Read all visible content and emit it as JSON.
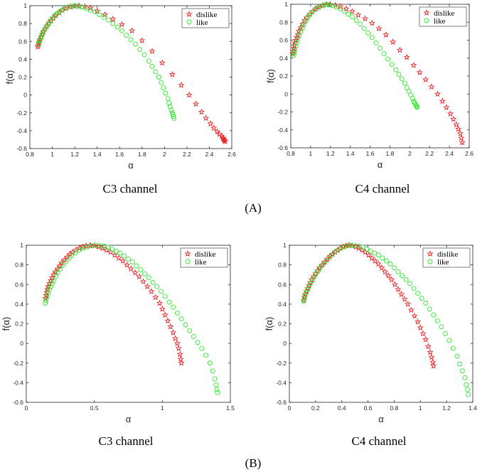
{
  "panel_labels": {
    "A": "(A)",
    "B": "(B)"
  },
  "captions": {
    "A_left": "C3 channel",
    "A_right": "C4 channel",
    "B_left": "C3 channel",
    "B_right": "C4 channel"
  },
  "colors": {
    "dislike": "#e8282b",
    "like": "#2ee82e",
    "axis": "#262626"
  },
  "legend_placement": "top-right",
  "chart_data": [
    {
      "id": "A-C3",
      "type": "scatter",
      "title": "",
      "xlabel": "α",
      "ylabel": "f(α)",
      "xlim": [
        0.8,
        2.6
      ],
      "ylim": [
        -0.6,
        1
      ],
      "xticks": [
        "0.8",
        "1",
        "1.2",
        "1.4",
        "1.6",
        "1.8",
        "2",
        "2.2",
        "2.4",
        "2.6"
      ],
      "yticks": [
        "-0.6",
        "-0.4",
        "-0.2",
        "0",
        "0.2",
        "0.4",
        "0.6",
        "0.8",
        "1"
      ],
      "grid": false,
      "series": [
        {
          "name": "dislike",
          "marker": "star",
          "color": "#e8282b",
          "x": [
            0.87,
            0.875,
            0.88,
            0.885,
            0.89,
            0.9,
            0.91,
            0.92,
            0.935,
            0.95,
            0.97,
            0.99,
            1.01,
            1.03,
            1.06,
            1.09,
            1.12,
            1.16,
            1.2,
            1.24,
            1.29,
            1.34,
            1.4,
            1.47,
            1.54,
            1.62,
            1.71,
            1.8,
            1.89,
            1.98,
            2.07,
            2.15,
            2.22,
            2.28,
            2.33,
            2.37,
            2.41,
            2.44,
            2.47,
            2.49,
            2.51,
            2.52,
            2.525,
            2.53,
            2.535,
            2.54
          ],
          "y": [
            0.54,
            0.56,
            0.58,
            0.6,
            0.62,
            0.65,
            0.68,
            0.71,
            0.74,
            0.77,
            0.8,
            0.83,
            0.86,
            0.89,
            0.92,
            0.95,
            0.97,
            0.985,
            0.995,
            1.0,
            0.99,
            0.975,
            0.94,
            0.9,
            0.85,
            0.79,
            0.72,
            0.61,
            0.49,
            0.36,
            0.23,
            0.11,
            0.0,
            -0.1,
            -0.19,
            -0.26,
            -0.32,
            -0.37,
            -0.41,
            -0.44,
            -0.46,
            -0.48,
            -0.49,
            -0.5,
            -0.51,
            -0.52
          ]
        },
        {
          "name": "like",
          "marker": "circle",
          "color": "#2ee82e",
          "x": [
            0.88,
            0.885,
            0.89,
            0.9,
            0.91,
            0.92,
            0.935,
            0.95,
            0.965,
            0.98,
            1.0,
            1.02,
            1.04,
            1.06,
            1.085,
            1.11,
            1.14,
            1.17,
            1.2,
            1.23,
            1.26,
            1.3,
            1.34,
            1.38,
            1.42,
            1.46,
            1.5,
            1.54,
            1.58,
            1.62,
            1.66,
            1.7,
            1.74,
            1.78,
            1.82,
            1.86,
            1.89,
            1.92,
            1.95,
            1.97,
            1.99,
            2.01,
            2.03,
            2.04,
            2.05,
            2.06,
            2.07,
            2.075,
            2.08,
            2.085
          ],
          "y": [
            0.57,
            0.6,
            0.62,
            0.65,
            0.68,
            0.71,
            0.74,
            0.77,
            0.8,
            0.83,
            0.86,
            0.89,
            0.91,
            0.93,
            0.95,
            0.97,
            0.985,
            0.995,
            1.0,
            0.995,
            0.985,
            0.97,
            0.95,
            0.93,
            0.9,
            0.87,
            0.84,
            0.8,
            0.76,
            0.72,
            0.67,
            0.62,
            0.57,
            0.51,
            0.45,
            0.38,
            0.32,
            0.26,
            0.2,
            0.14,
            0.08,
            0.02,
            -0.04,
            -0.09,
            -0.13,
            -0.17,
            -0.2,
            -0.22,
            -0.24,
            -0.26
          ]
        }
      ]
    },
    {
      "id": "A-C4",
      "type": "scatter",
      "title": "",
      "xlabel": "α",
      "ylabel": "f(α)",
      "xlim": [
        0.8,
        2.6
      ],
      "ylim": [
        -0.6,
        1
      ],
      "xticks": [
        "0.8",
        "1",
        "1.2",
        "1.4",
        "1.6",
        "1.8",
        "2",
        "2.2",
        "2.4",
        "2.6"
      ],
      "yticks": [
        "-0.6",
        "-0.4",
        "-0.2",
        "0",
        "0.2",
        "0.4",
        "0.6",
        "0.8",
        "1"
      ],
      "grid": false,
      "series": [
        {
          "name": "dislike",
          "marker": "star",
          "color": "#e8282b",
          "x": [
            0.82,
            0.825,
            0.83,
            0.835,
            0.84,
            0.85,
            0.86,
            0.87,
            0.88,
            0.9,
            0.92,
            0.94,
            0.96,
            0.99,
            1.02,
            1.05,
            1.08,
            1.12,
            1.16,
            1.2,
            1.25,
            1.3,
            1.36,
            1.42,
            1.48,
            1.55,
            1.62,
            1.69,
            1.76,
            1.83,
            1.9,
            1.97,
            2.04,
            2.1,
            2.16,
            2.22,
            2.28,
            2.33,
            2.37,
            2.41,
            2.44,
            2.47,
            2.49,
            2.51,
            2.52,
            2.53
          ],
          "y": [
            0.45,
            0.48,
            0.51,
            0.54,
            0.57,
            0.6,
            0.63,
            0.66,
            0.7,
            0.74,
            0.78,
            0.82,
            0.85,
            0.89,
            0.92,
            0.95,
            0.97,
            0.985,
            0.995,
            1.0,
            0.99,
            0.975,
            0.95,
            0.92,
            0.88,
            0.84,
            0.79,
            0.73,
            0.66,
            0.58,
            0.49,
            0.41,
            0.32,
            0.24,
            0.16,
            0.08,
            0.0,
            -0.08,
            -0.15,
            -0.22,
            -0.28,
            -0.34,
            -0.39,
            -0.44,
            -0.49,
            -0.54
          ]
        },
        {
          "name": "like",
          "marker": "circle",
          "color": "#2ee82e",
          "x": [
            0.83,
            0.835,
            0.84,
            0.85,
            0.86,
            0.87,
            0.885,
            0.9,
            0.915,
            0.93,
            0.95,
            0.97,
            0.99,
            1.01,
            1.04,
            1.07,
            1.1,
            1.13,
            1.16,
            1.19,
            1.22,
            1.26,
            1.3,
            1.34,
            1.38,
            1.42,
            1.46,
            1.5,
            1.54,
            1.58,
            1.62,
            1.66,
            1.7,
            1.74,
            1.78,
            1.82,
            1.86,
            1.89,
            1.92,
            1.95,
            1.97,
            1.99,
            2.01,
            2.03,
            2.04,
            2.05,
            2.06,
            2.065,
            2.07,
            2.075
          ],
          "y": [
            0.43,
            0.46,
            0.49,
            0.53,
            0.57,
            0.61,
            0.65,
            0.69,
            0.73,
            0.77,
            0.81,
            0.85,
            0.88,
            0.91,
            0.94,
            0.96,
            0.98,
            0.99,
            1.0,
            0.995,
            0.985,
            0.97,
            0.95,
            0.92,
            0.89,
            0.86,
            0.82,
            0.78,
            0.73,
            0.68,
            0.63,
            0.57,
            0.51,
            0.45,
            0.39,
            0.33,
            0.27,
            0.22,
            0.17,
            0.12,
            0.07,
            0.03,
            -0.01,
            -0.05,
            -0.08,
            -0.1,
            -0.12,
            -0.13,
            -0.14,
            -0.15
          ]
        }
      ]
    },
    {
      "id": "B-C3",
      "type": "scatter",
      "title": "",
      "xlabel": "α",
      "ylabel": "f(α)",
      "xlim": [
        0,
        1.5
      ],
      "ylim": [
        -0.6,
        1
      ],
      "xticks": [
        "0",
        "0.5",
        "1",
        "1.5"
      ],
      "yticks": [
        "-0.6",
        "-0.4",
        "-0.2",
        "0",
        "0.2",
        "0.4",
        "0.6",
        "0.8",
        "1"
      ],
      "grid": false,
      "series": [
        {
          "name": "dislike",
          "marker": "star",
          "color": "#e8282b",
          "x": [
            0.14,
            0.145,
            0.15,
            0.155,
            0.16,
            0.17,
            0.18,
            0.19,
            0.2,
            0.215,
            0.23,
            0.245,
            0.26,
            0.28,
            0.3,
            0.32,
            0.34,
            0.365,
            0.39,
            0.415,
            0.44,
            0.47,
            0.5,
            0.53,
            0.56,
            0.59,
            0.62,
            0.65,
            0.68,
            0.71,
            0.74,
            0.77,
            0.8,
            0.83,
            0.86,
            0.89,
            0.92,
            0.95,
            0.98,
            1.0,
            1.02,
            1.04,
            1.06,
            1.08,
            1.095,
            1.11,
            1.12,
            1.13,
            1.135,
            1.14
          ],
          "y": [
            0.46,
            0.49,
            0.52,
            0.55,
            0.58,
            0.61,
            0.64,
            0.67,
            0.7,
            0.73,
            0.76,
            0.79,
            0.82,
            0.85,
            0.88,
            0.91,
            0.93,
            0.95,
            0.97,
            0.985,
            0.995,
            1.0,
            0.995,
            0.985,
            0.97,
            0.95,
            0.93,
            0.9,
            0.87,
            0.84,
            0.8,
            0.76,
            0.72,
            0.68,
            0.63,
            0.58,
            0.53,
            0.47,
            0.41,
            0.35,
            0.29,
            0.23,
            0.17,
            0.11,
            0.05,
            0.0,
            -0.05,
            -0.11,
            -0.16,
            -0.2
          ]
        },
        {
          "name": "like",
          "marker": "circle",
          "color": "#2ee82e",
          "x": [
            0.14,
            0.145,
            0.15,
            0.16,
            0.17,
            0.18,
            0.19,
            0.2,
            0.215,
            0.23,
            0.25,
            0.27,
            0.29,
            0.31,
            0.33,
            0.36,
            0.39,
            0.42,
            0.45,
            0.48,
            0.51,
            0.54,
            0.57,
            0.6,
            0.63,
            0.66,
            0.69,
            0.72,
            0.75,
            0.78,
            0.81,
            0.84,
            0.87,
            0.9,
            0.93,
            0.96,
            0.99,
            1.02,
            1.05,
            1.08,
            1.11,
            1.14,
            1.17,
            1.2,
            1.23,
            1.26,
            1.29,
            1.32,
            1.35,
            1.37,
            1.385,
            1.395,
            1.4,
            1.405
          ],
          "y": [
            0.41,
            0.44,
            0.47,
            0.51,
            0.55,
            0.58,
            0.61,
            0.64,
            0.68,
            0.72,
            0.76,
            0.8,
            0.83,
            0.86,
            0.89,
            0.92,
            0.95,
            0.97,
            0.985,
            0.995,
            1.0,
            0.995,
            0.99,
            0.98,
            0.96,
            0.94,
            0.92,
            0.89,
            0.86,
            0.83,
            0.79,
            0.75,
            0.71,
            0.67,
            0.62,
            0.58,
            0.53,
            0.48,
            0.42,
            0.37,
            0.31,
            0.25,
            0.19,
            0.13,
            0.07,
            0.01,
            -0.05,
            -0.12,
            -0.2,
            -0.28,
            -0.36,
            -0.42,
            -0.47,
            -0.5
          ]
        }
      ]
    },
    {
      "id": "B-C4",
      "type": "scatter",
      "title": "",
      "xlabel": "α",
      "ylabel": "f(α)",
      "xlim": [
        0,
        1.4
      ],
      "ylim": [
        -0.6,
        1
      ],
      "xticks": [
        "0",
        "0.2",
        "0.4",
        "0.6",
        "0.8",
        "1",
        "1.2",
        "1.4"
      ],
      "yticks": [
        "-0.6",
        "-0.4",
        "-0.2",
        "0",
        "0.2",
        "0.4",
        "0.6",
        "0.8",
        "1"
      ],
      "grid": false,
      "series": [
        {
          "name": "dislike",
          "marker": "star",
          "color": "#e8282b",
          "x": [
            0.11,
            0.115,
            0.12,
            0.13,
            0.14,
            0.15,
            0.16,
            0.17,
            0.185,
            0.2,
            0.215,
            0.23,
            0.25,
            0.27,
            0.29,
            0.31,
            0.33,
            0.35,
            0.37,
            0.39,
            0.41,
            0.43,
            0.455,
            0.48,
            0.505,
            0.53,
            0.555,
            0.58,
            0.605,
            0.63,
            0.655,
            0.68,
            0.705,
            0.73,
            0.755,
            0.78,
            0.805,
            0.83,
            0.855,
            0.88,
            0.905,
            0.93,
            0.955,
            0.98,
            1.0,
            1.02,
            1.04,
            1.06,
            1.075,
            1.085,
            1.095,
            1.1
          ],
          "y": [
            0.44,
            0.47,
            0.5,
            0.53,
            0.56,
            0.59,
            0.62,
            0.65,
            0.68,
            0.71,
            0.74,
            0.77,
            0.8,
            0.83,
            0.86,
            0.89,
            0.91,
            0.93,
            0.95,
            0.97,
            0.985,
            0.995,
            1.0,
            0.995,
            0.985,
            0.97,
            0.95,
            0.93,
            0.9,
            0.87,
            0.84,
            0.81,
            0.77,
            0.73,
            0.69,
            0.65,
            0.6,
            0.55,
            0.5,
            0.45,
            0.4,
            0.34,
            0.28,
            0.22,
            0.16,
            0.1,
            0.04,
            -0.03,
            -0.09,
            -0.14,
            -0.19,
            -0.23
          ]
        },
        {
          "name": "like",
          "marker": "circle",
          "color": "#2ee82e",
          "x": [
            0.11,
            0.115,
            0.12,
            0.13,
            0.14,
            0.15,
            0.16,
            0.175,
            0.19,
            0.205,
            0.22,
            0.24,
            0.26,
            0.28,
            0.3,
            0.32,
            0.345,
            0.37,
            0.395,
            0.42,
            0.445,
            0.47,
            0.5,
            0.53,
            0.56,
            0.59,
            0.62,
            0.65,
            0.68,
            0.71,
            0.74,
            0.77,
            0.8,
            0.83,
            0.86,
            0.89,
            0.92,
            0.95,
            0.98,
            1.01,
            1.04,
            1.07,
            1.1,
            1.13,
            1.16,
            1.19,
            1.22,
            1.25,
            1.28,
            1.3,
            1.32,
            1.34,
            1.35,
            1.36,
            1.365
          ],
          "y": [
            0.43,
            0.46,
            0.49,
            0.52,
            0.55,
            0.58,
            0.61,
            0.64,
            0.68,
            0.71,
            0.74,
            0.78,
            0.81,
            0.84,
            0.87,
            0.9,
            0.93,
            0.95,
            0.97,
            0.985,
            0.995,
            1.0,
            0.995,
            0.99,
            0.98,
            0.96,
            0.94,
            0.92,
            0.9,
            0.87,
            0.84,
            0.81,
            0.77,
            0.73,
            0.69,
            0.65,
            0.61,
            0.56,
            0.51,
            0.46,
            0.41,
            0.35,
            0.29,
            0.23,
            0.17,
            0.1,
            0.03,
            -0.05,
            -0.13,
            -0.21,
            -0.28,
            -0.35,
            -0.42,
            -0.47,
            -0.52
          ]
        }
      ]
    }
  ]
}
